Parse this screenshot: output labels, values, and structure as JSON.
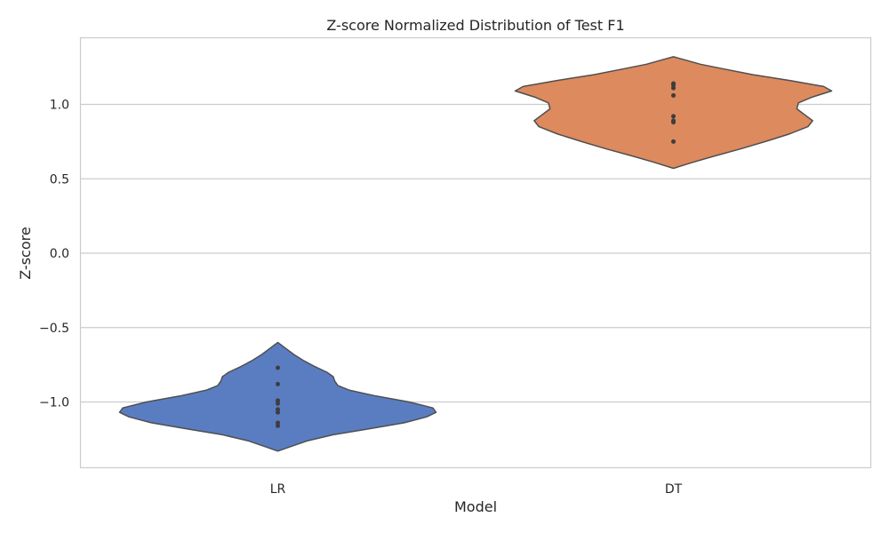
{
  "chart_data": {
    "type": "violin",
    "title": "Z-score Normalized Distribution of Test F1",
    "xlabel": "Model",
    "ylabel": "Z-score",
    "ylim": [
      -1.45,
      1.45
    ],
    "yticks": [
      1.0,
      0.5,
      0.0,
      -0.5,
      -1.0
    ],
    "ytick_labels": [
      "1.0",
      "0.5",
      "0.0",
      "−0.5",
      "−1.0"
    ],
    "grid": "horizontal",
    "categories": [
      "LR",
      "DT"
    ],
    "series": [
      {
        "color": "#5a7dc2",
        "points": [
          -0.77,
          -0.88,
          -0.99,
          -1.01,
          -1.05,
          -1.07,
          -1.14,
          -1.16
        ],
        "density": [
          [
            -1.33,
            0.0
          ],
          [
            -1.3,
            0.08
          ],
          [
            -1.26,
            0.19
          ],
          [
            -1.22,
            0.35
          ],
          [
            -1.18,
            0.58
          ],
          [
            -1.14,
            0.8
          ],
          [
            -1.1,
            0.94
          ],
          [
            -1.07,
            1.0
          ],
          [
            -1.04,
            0.98
          ],
          [
            -1.0,
            0.83
          ],
          [
            -0.96,
            0.62
          ],
          [
            -0.92,
            0.45
          ],
          [
            -0.89,
            0.38
          ],
          [
            -0.86,
            0.36
          ],
          [
            -0.83,
            0.35
          ],
          [
            -0.8,
            0.31
          ],
          [
            -0.76,
            0.23
          ],
          [
            -0.72,
            0.16
          ],
          [
            -0.68,
            0.1
          ],
          [
            -0.64,
            0.05
          ],
          [
            -0.6,
            0.0
          ]
        ]
      },
      {
        "color": "#dd8a5e",
        "points": [
          1.14,
          1.13,
          1.11,
          1.06,
          0.92,
          0.89,
          0.88,
          0.75
        ],
        "density": [
          [
            0.57,
            0.0
          ],
          [
            0.61,
            0.12
          ],
          [
            0.65,
            0.25
          ],
          [
            0.7,
            0.42
          ],
          [
            0.75,
            0.58
          ],
          [
            0.8,
            0.73
          ],
          [
            0.85,
            0.85
          ],
          [
            0.89,
            0.88
          ],
          [
            0.93,
            0.83
          ],
          [
            0.97,
            0.78
          ],
          [
            1.01,
            0.79
          ],
          [
            1.05,
            0.88
          ],
          [
            1.09,
            1.0
          ],
          [
            1.12,
            0.95
          ],
          [
            1.16,
            0.74
          ],
          [
            1.2,
            0.5
          ],
          [
            1.24,
            0.31
          ],
          [
            1.27,
            0.17
          ],
          [
            1.3,
            0.07
          ],
          [
            1.32,
            0.0
          ]
        ]
      }
    ]
  }
}
